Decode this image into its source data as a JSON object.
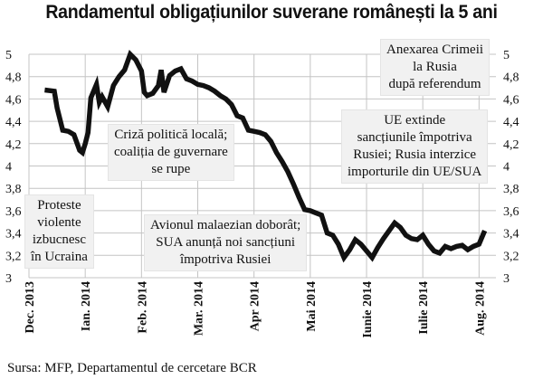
{
  "title": "Randamentul obligațiunilor suverane românești la 5 ani",
  "source": "Sursa: MFP, Departamentul de cercetare BCR",
  "chart_data": {
    "type": "line",
    "title": "Randamentul obligațiunilor suverane românești la 5 ani",
    "xlabel": "",
    "ylabel": "",
    "ylim": [
      3,
      5
    ],
    "yticks": [
      3,
      3.2,
      3.4,
      3.6,
      3.8,
      4,
      4.2,
      4.4,
      4.6,
      4.8,
      5
    ],
    "ytick_labels": [
      "3",
      "3,2",
      "3,4",
      "3,6",
      "3,8",
      "4",
      "4,2",
      "4,4",
      "4,6",
      "4,8",
      "5"
    ],
    "xlim": [
      0,
      8.3
    ],
    "xticks": [
      {
        "pos": 0,
        "label": "Dec. 2013"
      },
      {
        "pos": 1,
        "label": "Ian. 2014"
      },
      {
        "pos": 2,
        "label": "Feb. 2014"
      },
      {
        "pos": 3,
        "label": "Mar. 2014"
      },
      {
        "pos": 4,
        "label": "Apr 2014"
      },
      {
        "pos": 5,
        "label": "Mai 2014"
      },
      {
        "pos": 6,
        "label": "Iunie 2014"
      },
      {
        "pos": 7,
        "label": "Iulie 2014"
      },
      {
        "pos": 8,
        "label": "Aug. 2014"
      }
    ],
    "grid": true,
    "series": [
      {
        "color": "#111111",
        "x": [
          0.28,
          0.45,
          0.5,
          0.6,
          0.7,
          0.8,
          0.9,
          0.95,
          1.0,
          1.05,
          1.1,
          1.2,
          1.25,
          1.3,
          1.4,
          1.5,
          1.6,
          1.7,
          1.8,
          1.9,
          2.0,
          2.05,
          2.1,
          2.2,
          2.3,
          2.35,
          2.4,
          2.5,
          2.6,
          2.7,
          2.8,
          2.9,
          3.0,
          3.1,
          3.2,
          3.3,
          3.4,
          3.5,
          3.6,
          3.7,
          3.8,
          3.9,
          4.0,
          4.1,
          4.2,
          4.3,
          4.4,
          4.5,
          4.6,
          4.7,
          4.8,
          4.9,
          5.0,
          5.1,
          5.2,
          5.3,
          5.4,
          5.5,
          5.6,
          5.7,
          5.8,
          5.9,
          6.0,
          6.1,
          6.2,
          6.3,
          6.4,
          6.5,
          6.6,
          6.7,
          6.8,
          6.9,
          7.0,
          7.1,
          7.2,
          7.3,
          7.4,
          7.5,
          7.6,
          7.7,
          7.8,
          7.9,
          8.0,
          8.1
        ],
        "y": [
          4.68,
          4.67,
          4.52,
          4.32,
          4.31,
          4.28,
          4.14,
          4.12,
          4.2,
          4.3,
          4.61,
          4.73,
          4.57,
          4.62,
          4.53,
          4.72,
          4.8,
          4.86,
          5.0,
          4.95,
          4.85,
          4.66,
          4.63,
          4.65,
          4.72,
          4.86,
          4.66,
          4.81,
          4.85,
          4.87,
          4.78,
          4.76,
          4.73,
          4.72,
          4.7,
          4.67,
          4.63,
          4.6,
          4.55,
          4.45,
          4.43,
          4.32,
          4.31,
          4.3,
          4.28,
          4.22,
          4.12,
          4.04,
          3.95,
          3.84,
          3.72,
          3.61,
          3.6,
          3.58,
          3.56,
          3.4,
          3.38,
          3.3,
          3.18,
          3.25,
          3.34,
          3.3,
          3.24,
          3.18,
          3.27,
          3.35,
          3.42,
          3.49,
          3.45,
          3.38,
          3.35,
          3.34,
          3.38,
          3.3,
          3.24,
          3.22,
          3.28,
          3.26,
          3.28,
          3.29,
          3.25,
          3.28,
          3.3,
          3.42
        ]
      }
    ],
    "annotations": [
      {
        "lines": [
          "Anexarea Crimeii",
          "la Rusia",
          "după referendum"
        ]
      },
      {
        "lines": [
          "Criză politică locală;",
          "coaliția de guvernare",
          "se rupe"
        ]
      },
      {
        "lines": [
          "UE extinde",
          "sancțiunile împotriva",
          "Rusiei; Rusia interzice",
          "importurile din UE/SUA"
        ]
      },
      {
        "lines": [
          "Proteste",
          "violente",
          "izbucnesc",
          "în Ucraina"
        ]
      },
      {
        "lines": [
          "Avionul malaezian doborât;",
          "SUA anunță noi sancțiuni",
          "împotriva Rusiei"
        ]
      }
    ]
  }
}
